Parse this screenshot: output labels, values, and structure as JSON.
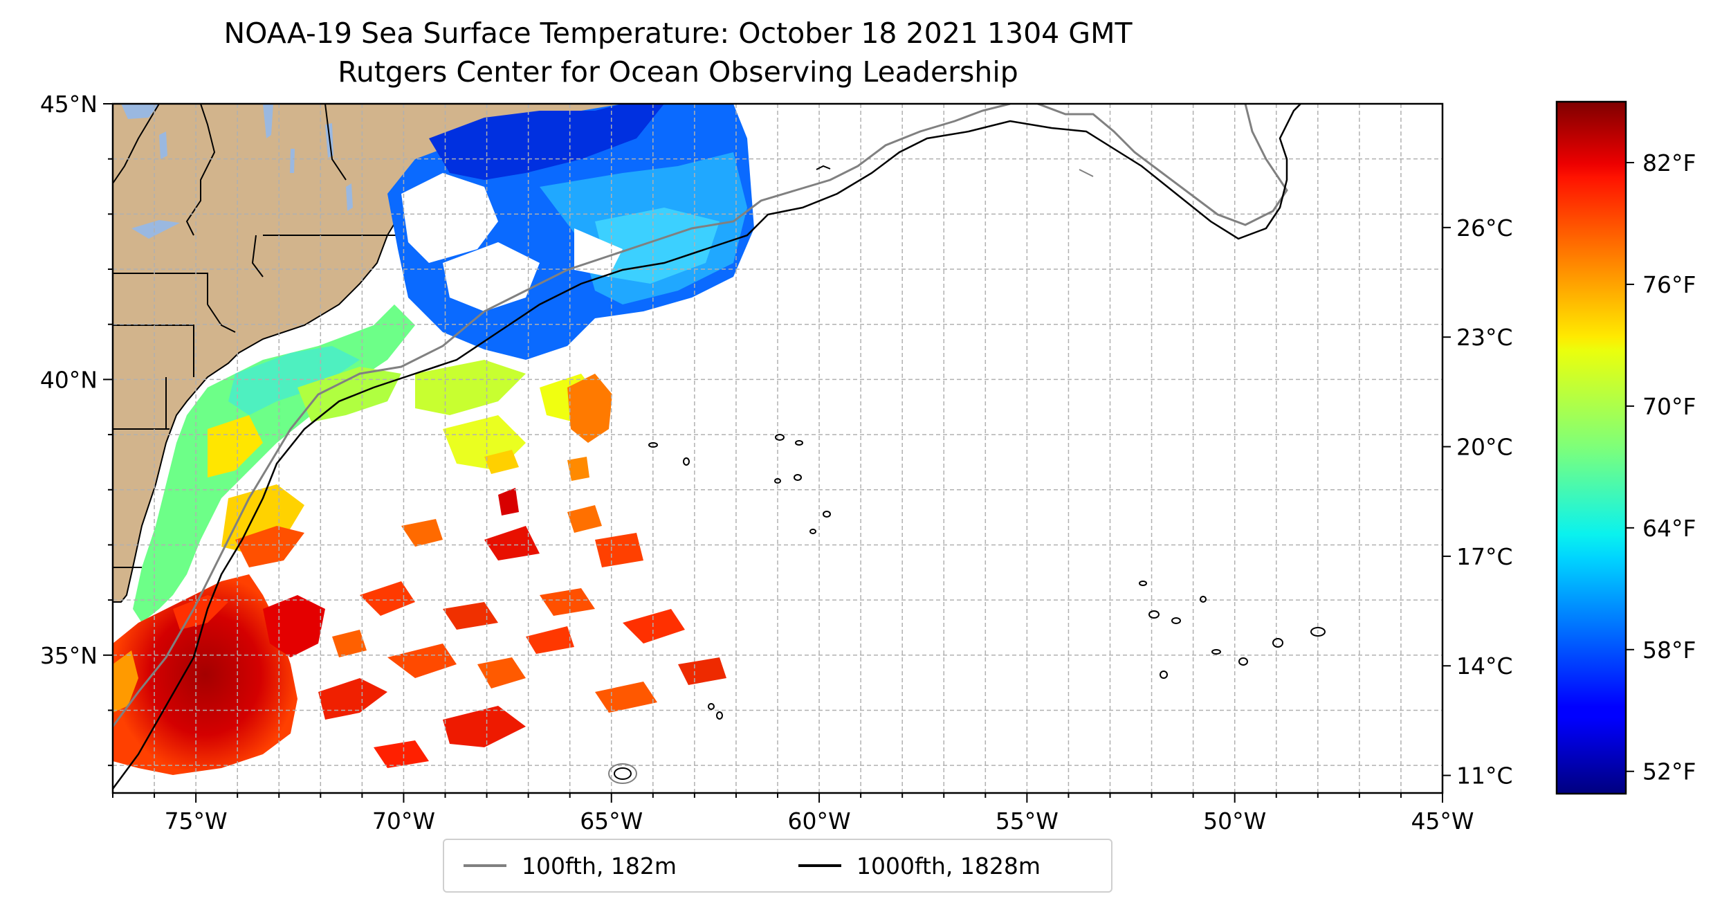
{
  "title": "NOAA-19 Sea Surface Temperature: October 18 2021 1304 GMT",
  "subtitle": "Rutgers Center for Ocean Observing Leadership",
  "map": {
    "lon_range": [
      -77,
      -45
    ],
    "lat_range": [
      32.5,
      45
    ],
    "lon_ticks": [
      {
        "value": -75,
        "label": "75°W"
      },
      {
        "value": -70,
        "label": "70°W"
      },
      {
        "value": -65,
        "label": "65°W"
      },
      {
        "value": -60,
        "label": "60°W"
      },
      {
        "value": -55,
        "label": "55°W"
      },
      {
        "value": -50,
        "label": "50°W"
      },
      {
        "value": -45,
        "label": "45°W"
      }
    ],
    "lat_ticks": [
      {
        "value": 45,
        "label": "45°N"
      },
      {
        "value": 40,
        "label": "40°N"
      },
      {
        "value": 35,
        "label": "35°N"
      }
    ],
    "gridlines": "dashed light gray, 1° spacing",
    "land_color": "#d2b48c",
    "lake_color": "#9ab8e0"
  },
  "colorbar": {
    "colormap": "jet",
    "fahrenheit_ticks": [
      {
        "value": 82,
        "label": "82°F"
      },
      {
        "value": 76,
        "label": "76°F"
      },
      {
        "value": 70,
        "label": "70°F"
      },
      {
        "value": 64,
        "label": "64°F"
      },
      {
        "value": 58,
        "label": "58°F"
      },
      {
        "value": 52,
        "label": "52°F"
      }
    ],
    "celsius_ticks": [
      {
        "value": 26,
        "label": "26°C"
      },
      {
        "value": 23,
        "label": "23°C"
      },
      {
        "value": 20,
        "label": "20°C"
      },
      {
        "value": 17,
        "label": "17°C"
      },
      {
        "value": 14,
        "label": "14°C"
      },
      {
        "value": 11,
        "label": "11°C"
      }
    ]
  },
  "legend": {
    "items": [
      {
        "label": "100fth, 182m",
        "color": "#808080"
      },
      {
        "label": "1000fth, 1828m",
        "color": "#000000"
      }
    ]
  }
}
